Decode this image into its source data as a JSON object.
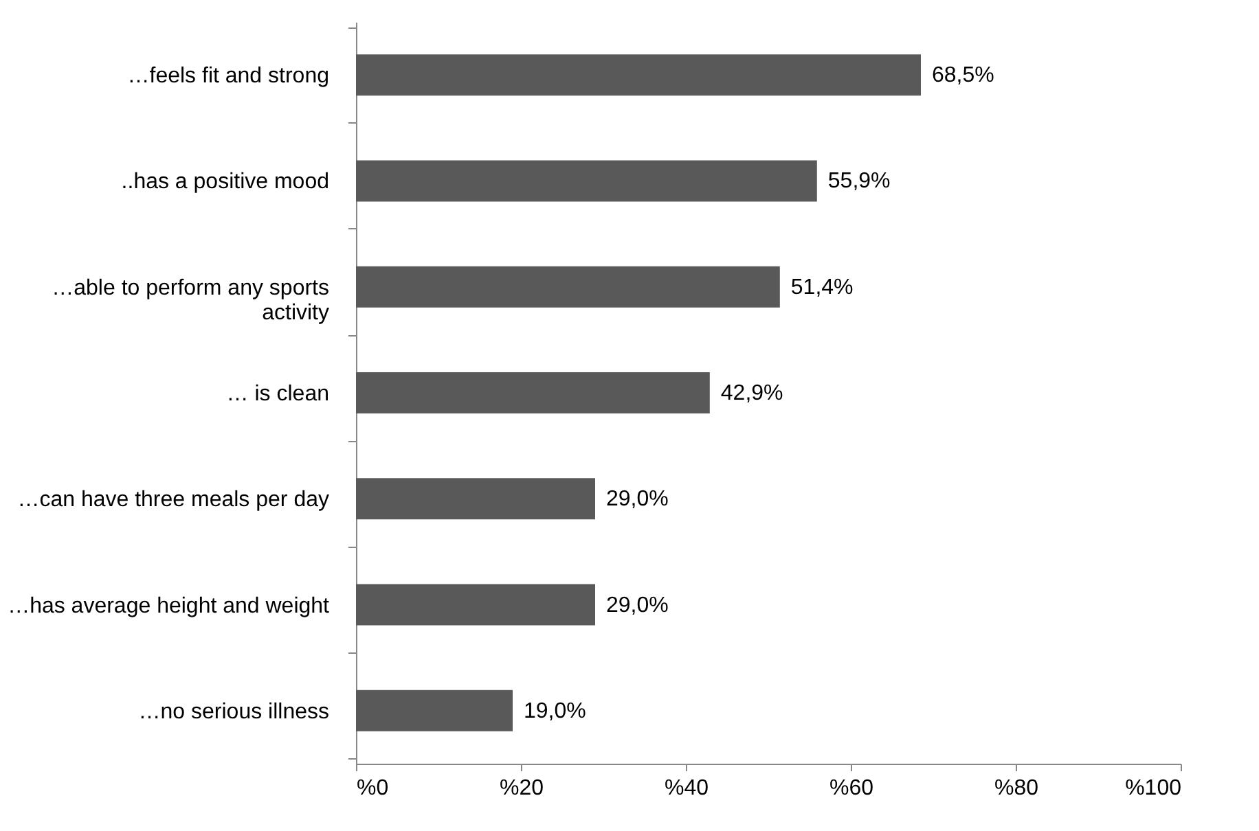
{
  "chart_data": {
    "type": "bar",
    "orientation": "horizontal",
    "categories": [
      "…feels fit and strong",
      "..has a positive mood",
      "…able to perform any sports activity",
      "… is clean",
      "…can have three meals per day",
      "…has average height and weight",
      "…no serious illness"
    ],
    "values": [
      68.5,
      55.9,
      51.4,
      42.9,
      29.0,
      29.0,
      19.0
    ],
    "value_labels": [
      "68,5%",
      "55,9%",
      "51,4%",
      "42,9%",
      "29,0%",
      "29,0%",
      "19,0%"
    ],
    "color": "#595959",
    "xlim": [
      0,
      100
    ],
    "xticks": [
      {
        "value": 0,
        "label": "%0"
      },
      {
        "value": 20,
        "label": "%20"
      },
      {
        "value": 40,
        "label": "%40"
      },
      {
        "value": 60,
        "label": "%60"
      },
      {
        "value": 80,
        "label": "%80"
      },
      {
        "value": 100,
        "label": "%100"
      }
    ],
    "grid": false
  }
}
